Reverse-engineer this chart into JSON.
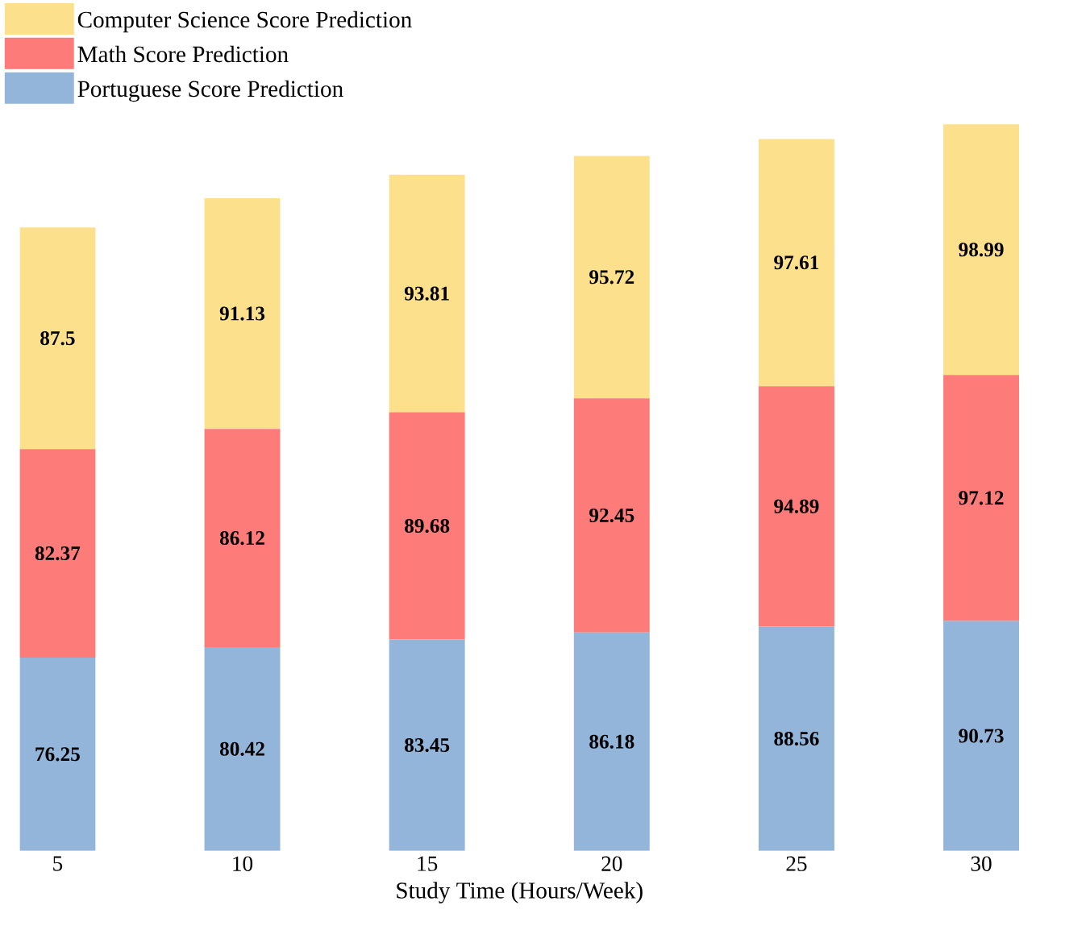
{
  "chart_data": {
    "type": "bar",
    "stacked": true,
    "xlabel": "Study Time (Hours/Week)",
    "categories": [
      "5",
      "10",
      "15",
      "20",
      "25",
      "30"
    ],
    "series": [
      {
        "name": "Portuguese Score Prediction",
        "color": "#93b5da",
        "values": [
          76.25,
          80.42,
          83.45,
          86.18,
          88.56,
          90.73
        ]
      },
      {
        "name": "Math Score Prediction",
        "color": "#fd7b79",
        "values": [
          82.37,
          86.12,
          89.68,
          92.45,
          94.89,
          97.12
        ]
      },
      {
        "name": "Computer Science Score Prediction",
        "color": "#fde08b",
        "values": [
          87.5,
          91.13,
          93.81,
          95.72,
          97.61,
          98.99
        ]
      }
    ],
    "data_labels": true,
    "legend": "top left"
  }
}
